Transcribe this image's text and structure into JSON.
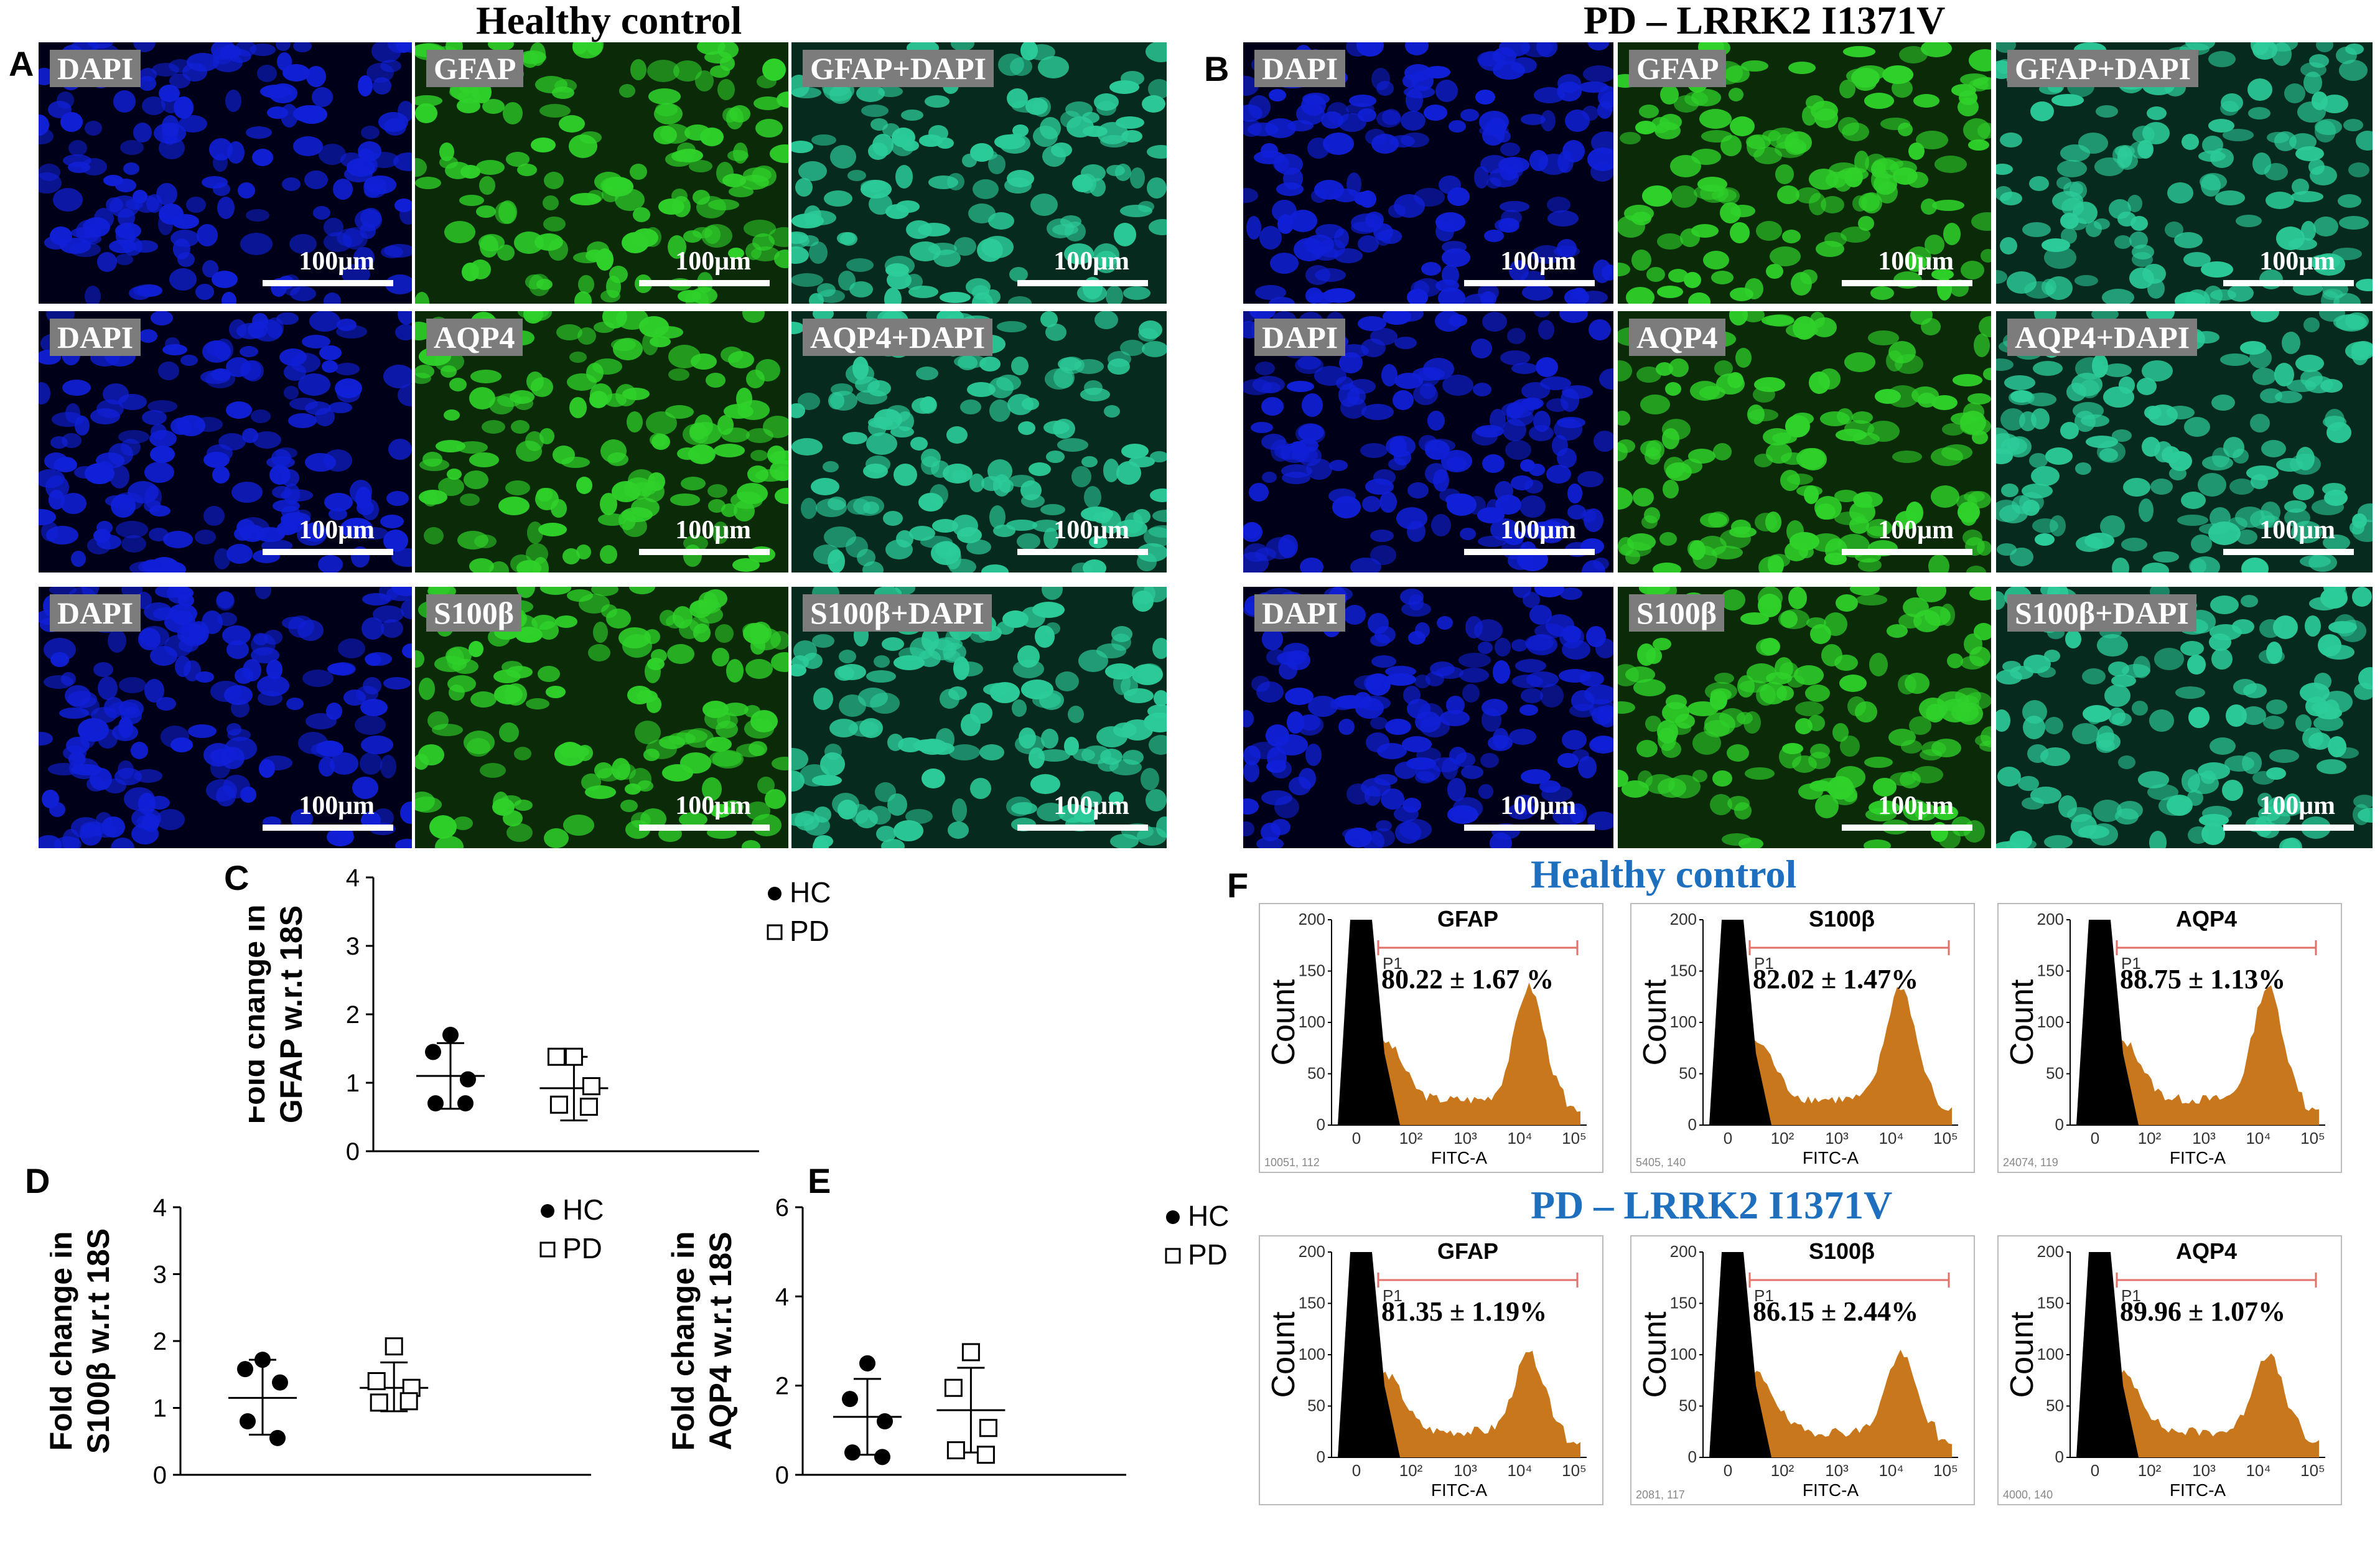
{
  "panel_letters": {
    "A": "A",
    "B": "B",
    "C": "C",
    "D": "D",
    "E": "E",
    "F": "F"
  },
  "titles": {
    "healthy": "Healthy control",
    "pd": "PD – LRRK2 I1371V"
  },
  "scale_bar_label": "100μm",
  "microscopy": {
    "healthy": [
      [
        "DAPI",
        "GFAP",
        "GFAP+DAPI"
      ],
      [
        "DAPI",
        "AQP4",
        "AQP4+DAPI"
      ],
      [
        "DAPI",
        "S100β",
        "S100β+DAPI"
      ]
    ],
    "pd": [
      [
        "DAPI",
        "GFAP",
        "GFAP+DAPI"
      ],
      [
        "DAPI",
        "AQP4",
        "AQP4+DAPI"
      ],
      [
        "DAPI",
        "S100β",
        "S100β+DAPI"
      ]
    ]
  },
  "colors": {
    "dapi": "#1020d8",
    "green": "#2fd22a",
    "merge": "#2ccc9a",
    "flow_fill": "#c9771c",
    "title_blue": "#1f6fbf",
    "gate": "#e0726a"
  },
  "chart_data": [
    {
      "id": "C",
      "type": "scatter",
      "ylabel_line1": "Fold change in",
      "ylabel_line2": "GFAP w.r.t 18S",
      "ylim": [
        0,
        4
      ],
      "yticks": [
        "0",
        "1",
        "2",
        "3",
        "4"
      ],
      "legend": [
        {
          "name": "HC",
          "marker": "●"
        },
        {
          "name": "PD",
          "marker": "□"
        }
      ],
      "series": [
        {
          "name": "HC",
          "values": [
            1.7,
            1.45,
            1.05,
            0.7,
            0.7
          ],
          "mean": 1.1,
          "sd_low": 0.62,
          "sd_high": 1.58
        },
        {
          "name": "PD",
          "values": [
            1.38,
            1.38,
            0.95,
            0.68,
            0.65
          ],
          "mean": 0.92,
          "sd_low": 0.45,
          "sd_high": 1.38
        }
      ]
    },
    {
      "id": "D",
      "type": "scatter",
      "ylabel_line1": "Fold change in",
      "ylabel_line2": "S100β w.r.t 18S",
      "ylim": [
        0,
        4
      ],
      "yticks": [
        "0",
        "1",
        "2",
        "3",
        "4"
      ],
      "legend": [
        {
          "name": "HC",
          "marker": "●"
        },
        {
          "name": "PD",
          "marker": "□"
        }
      ],
      "series": [
        {
          "name": "HC",
          "values": [
            1.72,
            1.58,
            1.38,
            0.8,
            0.55
          ],
          "mean": 1.15,
          "sd_low": 0.6,
          "sd_high": 1.72
        },
        {
          "name": "PD",
          "values": [
            1.92,
            1.4,
            1.3,
            1.08,
            1.1
          ],
          "mean": 1.3,
          "sd_low": 0.95,
          "sd_high": 1.68
        }
      ]
    },
    {
      "id": "E",
      "type": "scatter",
      "ylabel_line1": "Fold change in",
      "ylabel_line2": "AQP4 w.r.t 18S",
      "ylim": [
        0,
        6
      ],
      "yticks": [
        "0",
        "2",
        "4",
        "6"
      ],
      "legend": [
        {
          "name": "HC",
          "marker": "●"
        },
        {
          "name": "PD",
          "marker": "□"
        }
      ],
      "series": [
        {
          "name": "HC",
          "values": [
            2.5,
            1.7,
            1.2,
            0.5,
            0.4
          ],
          "mean": 1.3,
          "sd_low": 0.45,
          "sd_high": 2.15
        },
        {
          "name": "PD",
          "values": [
            2.75,
            1.95,
            1.05,
            0.55,
            0.45
          ],
          "mean": 1.45,
          "sd_low": 0.5,
          "sd_high": 2.4
        }
      ]
    }
  ],
  "flow": {
    "rows": [
      {
        "title": "Healthy control",
        "plots": [
          {
            "marker": "GFAP",
            "pct": "80.22 ± 1.67 %",
            "gate": "P1",
            "id": "10051, 112"
          },
          {
            "marker": "S100β",
            "pct": "82.02 ± 1.47%",
            "gate": "P1",
            "id": "5405, 140"
          },
          {
            "marker": "AQP4",
            "pct": "88.75 ± 1.13%",
            "gate": "P1",
            "id": "24074, 119"
          }
        ]
      },
      {
        "title": "PD – LRRK2 I1371V",
        "plots": [
          {
            "marker": "GFAP",
            "pct": "81.35 ± 1.19%",
            "gate": "P1",
            "id": ""
          },
          {
            "marker": "S100β",
            "pct": "86.15 ± 2.44%",
            "gate": "P1",
            "id": "2081, 117"
          },
          {
            "marker": "AQP4",
            "pct": "89.96 ± 1.07%",
            "gate": "P1",
            "id": "4000, 140"
          }
        ]
      }
    ],
    "count_label": "Count",
    "x_label": "FITC-A",
    "y_ticks": [
      "0",
      "50",
      "100",
      "150",
      "200"
    ],
    "x_ticks": [
      "0",
      "10²",
      "10³",
      "10⁴",
      "10⁵"
    ]
  }
}
